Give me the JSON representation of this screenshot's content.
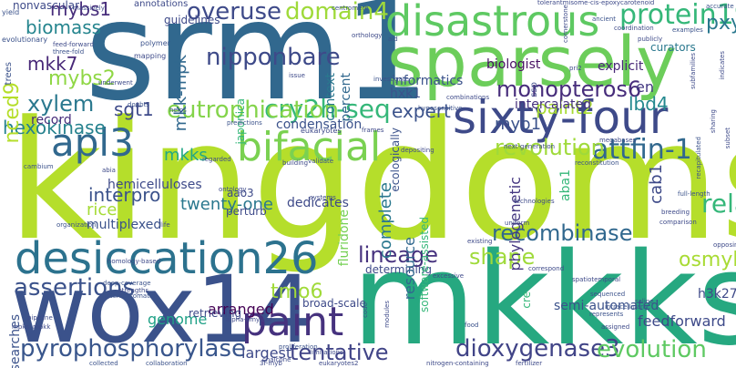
{
  "words": [
    {
      "text": "kingdoms",
      "color": "#b5de2b"
    },
    {
      "text": "srm1",
      "color": "#31688e"
    },
    {
      "text": "mkkks",
      "color": "#26a880"
    },
    {
      "text": "wox14",
      "color": "#3b528b"
    },
    {
      "text": "sparsely",
      "color": "#6ccd5a"
    },
    {
      "text": "disastrous",
      "color": "#5ec962"
    },
    {
      "text": "sixty-four",
      "color": "#3e4a89"
    },
    {
      "text": "desiccation26",
      "color": "#2c728e"
    },
    {
      "text": "paint",
      "color": "#46327e"
    },
    {
      "text": "bifacial",
      "color": "#7ad151"
    },
    {
      "text": "apl3",
      "color": "#31688e"
    },
    {
      "text": "protein19",
      "color": "#35b779"
    },
    {
      "text": "domain4",
      "color": "#9fda3a"
    },
    {
      "text": "overuse",
      "color": "#3e4a89"
    },
    {
      "text": "cry2h-seq",
      "color": "#35b779"
    },
    {
      "text": "monopteros6",
      "color": "#472d7b"
    },
    {
      "text": "eutrophication",
      "color": "#84d44b"
    },
    {
      "text": "nipponbare",
      "color": "#3e4a89"
    },
    {
      "text": "attfin-1",
      "color": "#31688e"
    },
    {
      "text": "hexokinase",
      "color": "#26828e"
    },
    {
      "text": "lineage",
      "color": "#46327e"
    },
    {
      "text": "pyrophosphorylase",
      "color": "#39568c"
    },
    {
      "text": "assertions",
      "color": "#3b528b"
    },
    {
      "text": "dioxygenase3",
      "color": "#414487"
    },
    {
      "text": "evolution",
      "color": "#5ec962"
    },
    {
      "text": "tentative",
      "color": "#414487"
    },
    {
      "text": "shape",
      "color": "#9fda3a"
    },
    {
      "text": "xylem",
      "color": "#2a788e"
    },
    {
      "text": "related41",
      "color": "#b5de2b"
    },
    {
      "text": "revolution",
      "color": "#35b779"
    },
    {
      "text": "biomass",
      "color": "#9fda3a"
    },
    {
      "text": "mkk7",
      "color": "#31688e"
    },
    {
      "text": "mybs2",
      "color": "#25858e"
    },
    {
      "text": "mybs1",
      "color": "#482878"
    },
    {
      "text": "pxy",
      "color": "#8fd744"
    },
    {
      "text": "lbd4",
      "color": "#472d7b"
    },
    {
      "text": "en",
      "color": "#2a788e"
    },
    {
      "text": "recombinase",
      "color": "#23888e"
    },
    {
      "text": "osmybs1",
      "color": "#443983"
    },
    {
      "text": "tmo6",
      "color": "#31688e"
    },
    {
      "text": "mkks",
      "color": "#a8db34"
    },
    {
      "text": "expert",
      "color": "#a0da39"
    },
    {
      "text": "paint2",
      "color": "#46327e"
    },
    {
      "text": "interpro",
      "color": "#22a785"
    },
    {
      "text": "sgt1",
      "color": "#3b528b"
    },
    {
      "text": "twenty-one",
      "color": "#a8db34"
    },
    {
      "text": "myb1",
      "color": "#3b528b"
    },
    {
      "text": "rice",
      "color": "#3e4a89"
    },
    {
      "text": "arranged",
      "color": "#2a788e"
    },
    {
      "text": "genome",
      "color": "#3b528b"
    },
    {
      "text": "largest",
      "color": "#a5db36"
    },
    {
      "text": "biologist",
      "color": "#440154"
    },
    {
      "text": "hxk1",
      "color": "#1fa187"
    },
    {
      "text": "explicit",
      "color": "#3e4a89"
    },
    {
      "text": "curators",
      "color": "#471063"
    },
    {
      "text": "record",
      "color": "#3b528b"
    },
    {
      "text": "hemicelluloses",
      "color": "#482878"
    },
    {
      "text": "condensation",
      "color": "#2a788e"
    },
    {
      "text": "guidelines",
      "color": "#3e4a89"
    },
    {
      "text": "informatics",
      "color": "#2a788e"
    },
    {
      "text": "intercalated",
      "color": "#75d054"
    },
    {
      "text": "multiplexed",
      "color": "#31688e"
    },
    {
      "text": "determining",
      "color": "#453781"
    },
    {
      "text": "broad-scale",
      "color": "#35b779"
    },
    {
      "text": "retrieving",
      "color": "#3e4a89"
    },
    {
      "text": "feedforward",
      "color": "#472d7b"
    },
    {
      "text": "semi-automated",
      "color": "#3b528b"
    },
    {
      "text": "h3k27me3-marked",
      "color": "#35b779"
    },
    {
      "text": "nonvascular",
      "color": "#2a788e"
    },
    {
      "text": "yield",
      "color": "#31688e"
    },
    {
      "text": "annotations",
      "color": "#3e4a89"
    },
    {
      "text": "dedicates",
      "color": "#3b528b"
    },
    {
      "text": "perturb",
      "color": "#46327e"
    },
    {
      "text": "aao3",
      "color": "#3b528b"
    },
    {
      "text": "nced9",
      "color": "#3e4a89"
    },
    {
      "text": "mkk-mpk",
      "color": "#3e4a89"
    },
    {
      "text": "trees",
      "color": "#3e4a89"
    },
    {
      "text": "complete",
      "color": "#3b528b"
    },
    {
      "text": "fluridone",
      "color": "#3e4a89"
    },
    {
      "text": "resource",
      "color": "#35b779"
    },
    {
      "text": "phylogenetic",
      "color": "#3e4a89"
    },
    {
      "text": "aba1",
      "color": "#3e4a89"
    },
    {
      "text": "cab1",
      "color": "#3b528b"
    },
    {
      "text": "japonica",
      "color": "#3e4a89"
    },
    {
      "text": "context",
      "color": "#3b528b"
    },
    {
      "text": "percent",
      "color": "#3e4a89"
    },
    {
      "text": "ecologically",
      "color": "#35b779"
    },
    {
      "text": "software-assisted",
      "color": "#3b528b"
    },
    {
      "text": "cre",
      "color": "#3e4a89"
    },
    {
      "text": "searches",
      "color": "#3b528b"
    },
    {
      "text": "ssp",
      "color": "#3e4a89"
    },
    {
      "text": "emphasis",
      "color": "#3e4a89"
    },
    {
      "text": "cornerstone",
      "color": "#3e4a89"
    },
    {
      "text": "polymer",
      "color": "#3b528b"
    },
    {
      "text": "mapping",
      "color": "#3e4a89"
    },
    {
      "text": "massively",
      "color": "#3e4a89"
    },
    {
      "text": "centromere",
      "color": "#3b528b"
    },
    {
      "text": "tolerantmisome-cis-epoxycarotenoid",
      "color": "#3e4a89"
    },
    {
      "text": "evolutionary",
      "color": "#3b528b"
    },
    {
      "text": "feed-forward",
      "color": "#3e4a89"
    },
    {
      "text": "three-fold",
      "color": "#3b528b"
    },
    {
      "text": "orthology",
      "color": "#3e4a89"
    },
    {
      "text": "investigate",
      "color": "#3b528b"
    },
    {
      "text": "eukaryotes",
      "color": "#3e4a89"
    },
    {
      "text": "predictions",
      "color": "#3b528b"
    },
    {
      "text": "frames",
      "color": "#3e4a89"
    },
    {
      "text": "helps",
      "color": "#3b528b"
    },
    {
      "text": "issue",
      "color": "#3e4a89"
    },
    {
      "text": "building",
      "color": "#3e4a89"
    },
    {
      "text": "validate",
      "color": "#3b528b"
    },
    {
      "text": "ontology",
      "color": "#3e4a89"
    },
    {
      "text": "systems",
      "color": "#3e4a89"
    },
    {
      "text": "homology-based",
      "color": "#3e4a89"
    },
    {
      "text": "deep-coverage",
      "color": "#3b528b"
    },
    {
      "text": "strengths",
      "color": "#3e4a89"
    },
    {
      "text": "heterochromatin",
      "color": "#3b528b"
    },
    {
      "text": "alpha-amylase",
      "color": "#3e4a89"
    },
    {
      "text": "proliferation",
      "color": "#3b528b"
    },
    {
      "text": "chalcone",
      "color": "#3e4a89"
    },
    {
      "text": "limitations",
      "color": "#3e4a89"
    },
    {
      "text": "eukaryotes2",
      "color": "#3e4a89"
    },
    {
      "text": "collaboration",
      "color": "#3b528b"
    },
    {
      "text": "nitrogen-containing",
      "color": "#3e4a89"
    },
    {
      "text": "fertilizer",
      "color": "#3e4a89"
    },
    {
      "text": "food",
      "color": "#3b528b"
    },
    {
      "text": "existing",
      "color": "#3e4a89"
    },
    {
      "text": "spatiotemporal",
      "color": "#3e4a89"
    },
    {
      "text": "sequenced",
      "color": "#3b528b"
    },
    {
      "text": "assigned",
      "color": "#3e4a89"
    },
    {
      "text": "represents",
      "color": "#3b528b"
    },
    {
      "text": "saline",
      "color": "#3e4a89"
    },
    {
      "text": "uniform",
      "color": "#3e4a89"
    },
    {
      "text": "reconstitution",
      "color": "#3b528b"
    },
    {
      "text": "next-generation",
      "color": "#3e4a89"
    },
    {
      "text": "depositing",
      "color": "#3e4a89"
    },
    {
      "text": "hyposensitive",
      "color": "#3b528b"
    },
    {
      "text": "combinations",
      "color": "#3e4a89"
    },
    {
      "text": "coordination",
      "color": "#3e4a89"
    },
    {
      "text": "full-length",
      "color": "#3b528b"
    },
    {
      "text": "comparison",
      "color": "#3e4a89"
    },
    {
      "text": "breeding",
      "color": "#3e4a89"
    },
    {
      "text": "accurate",
      "color": "#3b528b"
    },
    {
      "text": "sharing",
      "color": "#3e4a89"
    },
    {
      "text": "regarded",
      "color": "#3e4a89"
    },
    {
      "text": "cambium",
      "color": "#3b528b"
    },
    {
      "text": "pipeline",
      "color": "#3e4a89"
    },
    {
      "text": "mpkk",
      "color": "#3e4a89"
    },
    {
      "text": "organization",
      "color": "#3b528b"
    },
    {
      "text": "technologies",
      "color": "#3e4a89"
    },
    {
      "text": "correspond",
      "color": "#3e4a89"
    },
    {
      "text": "ancient",
      "color": "#3b528b"
    },
    {
      "text": "publicly",
      "color": "#3e4a89"
    },
    {
      "text": "megabases",
      "color": "#3e4a89"
    },
    {
      "text": "examples",
      "color": "#3b528b"
    },
    {
      "text": "subfamilies",
      "color": "#3e4a89"
    },
    {
      "text": "indicates",
      "color": "#3e4a89"
    },
    {
      "text": "intracellularly",
      "color": "#3b528b"
    },
    {
      "text": "opposing",
      "color": "#3e4a89"
    },
    {
      "text": "underwent",
      "color": "#3e4a89"
    },
    {
      "text": "doubts",
      "color": "#3b528b"
    },
    {
      "text": "life",
      "color": "#3e4a89"
    },
    {
      "text": "abia",
      "color": "#3e4a89"
    },
    {
      "text": "code",
      "color": "#3b528b"
    },
    {
      "text": "modules",
      "color": "#3e4a89"
    },
    {
      "text": "3r-myb",
      "color": "#3e4a89"
    },
    {
      "text": "collected",
      "color": "#3b528b"
    },
    {
      "text": "excessive",
      "color": "#3e4a89"
    },
    {
      "text": "mpks",
      "color": "#3e4a89"
    },
    {
      "text": "aid",
      "color": "#3b528b"
    },
    {
      "text": "pri2",
      "color": "#3e4a89"
    },
    {
      "text": "subset",
      "color": "#3e4a89"
    },
    {
      "text": "recapitulated",
      "color": "#3b528b"
    }
  ]
}
